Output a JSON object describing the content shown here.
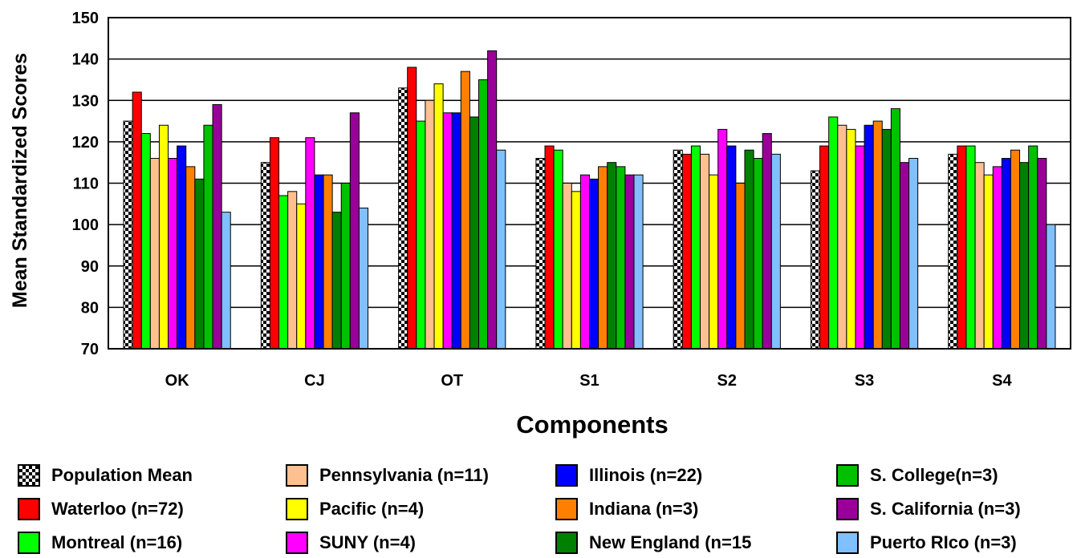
{
  "chart_data": {
    "type": "bar",
    "title": "",
    "xlabel": "Components",
    "ylabel": "Mean Standardized Scores",
    "ylim": [
      70,
      150
    ],
    "yticks": [
      70,
      80,
      90,
      100,
      110,
      120,
      130,
      140,
      150
    ],
    "grid": true,
    "legend_position": "bottom",
    "categories": [
      "OK",
      "CJ",
      "OT",
      "S1",
      "S2",
      "S3",
      "S4"
    ],
    "series": [
      {
        "name": "Population Mean",
        "color": "checker",
        "values": [
          125,
          115,
          133,
          116,
          118,
          113,
          117
        ]
      },
      {
        "name": "Waterloo (n=72)",
        "color": "#ff0000",
        "values": [
          132,
          121,
          138,
          119,
          117,
          119,
          119
        ]
      },
      {
        "name": "Montreal (n=16)",
        "color": "#00ff00",
        "values": [
          122,
          107,
          125,
          118,
          119,
          126,
          119
        ]
      },
      {
        "name": "Pennsylvania (n=11)",
        "color": "#ffc090",
        "values": [
          116,
          108,
          130,
          110,
          117,
          124,
          115
        ]
      },
      {
        "name": "Pacific (n=4)",
        "color": "#ffff00",
        "values": [
          124,
          105,
          134,
          108,
          112,
          123,
          112
        ]
      },
      {
        "name": "SUNY (n=4)",
        "color": "#ff00ff",
        "values": [
          116,
          121,
          127,
          112,
          123,
          119,
          114
        ]
      },
      {
        "name": "Illinois (n=22)",
        "color": "#0000ff",
        "values": [
          119,
          112,
          127,
          111,
          119,
          124,
          116
        ]
      },
      {
        "name": "Indiana (n=3)",
        "color": "#ff8000",
        "values": [
          114,
          112,
          137,
          114,
          110,
          125,
          118
        ]
      },
      {
        "name": "New England (n=15",
        "color": "#008000",
        "values": [
          111,
          103,
          126,
          115,
          118,
          123,
          115
        ]
      },
      {
        "name": "S. College(n=3)",
        "color": "#00c000",
        "values": [
          124,
          110,
          135,
          114,
          116,
          128,
          119
        ]
      },
      {
        "name": "S. California (n=3)",
        "color": "#990099",
        "values": [
          129,
          127,
          142,
          112,
          122,
          115,
          116
        ]
      },
      {
        "name": "Puerto RIco (n=3)",
        "color": "#80c0ff",
        "values": [
          103,
          104,
          118,
          112,
          117,
          116,
          100
        ]
      }
    ]
  }
}
